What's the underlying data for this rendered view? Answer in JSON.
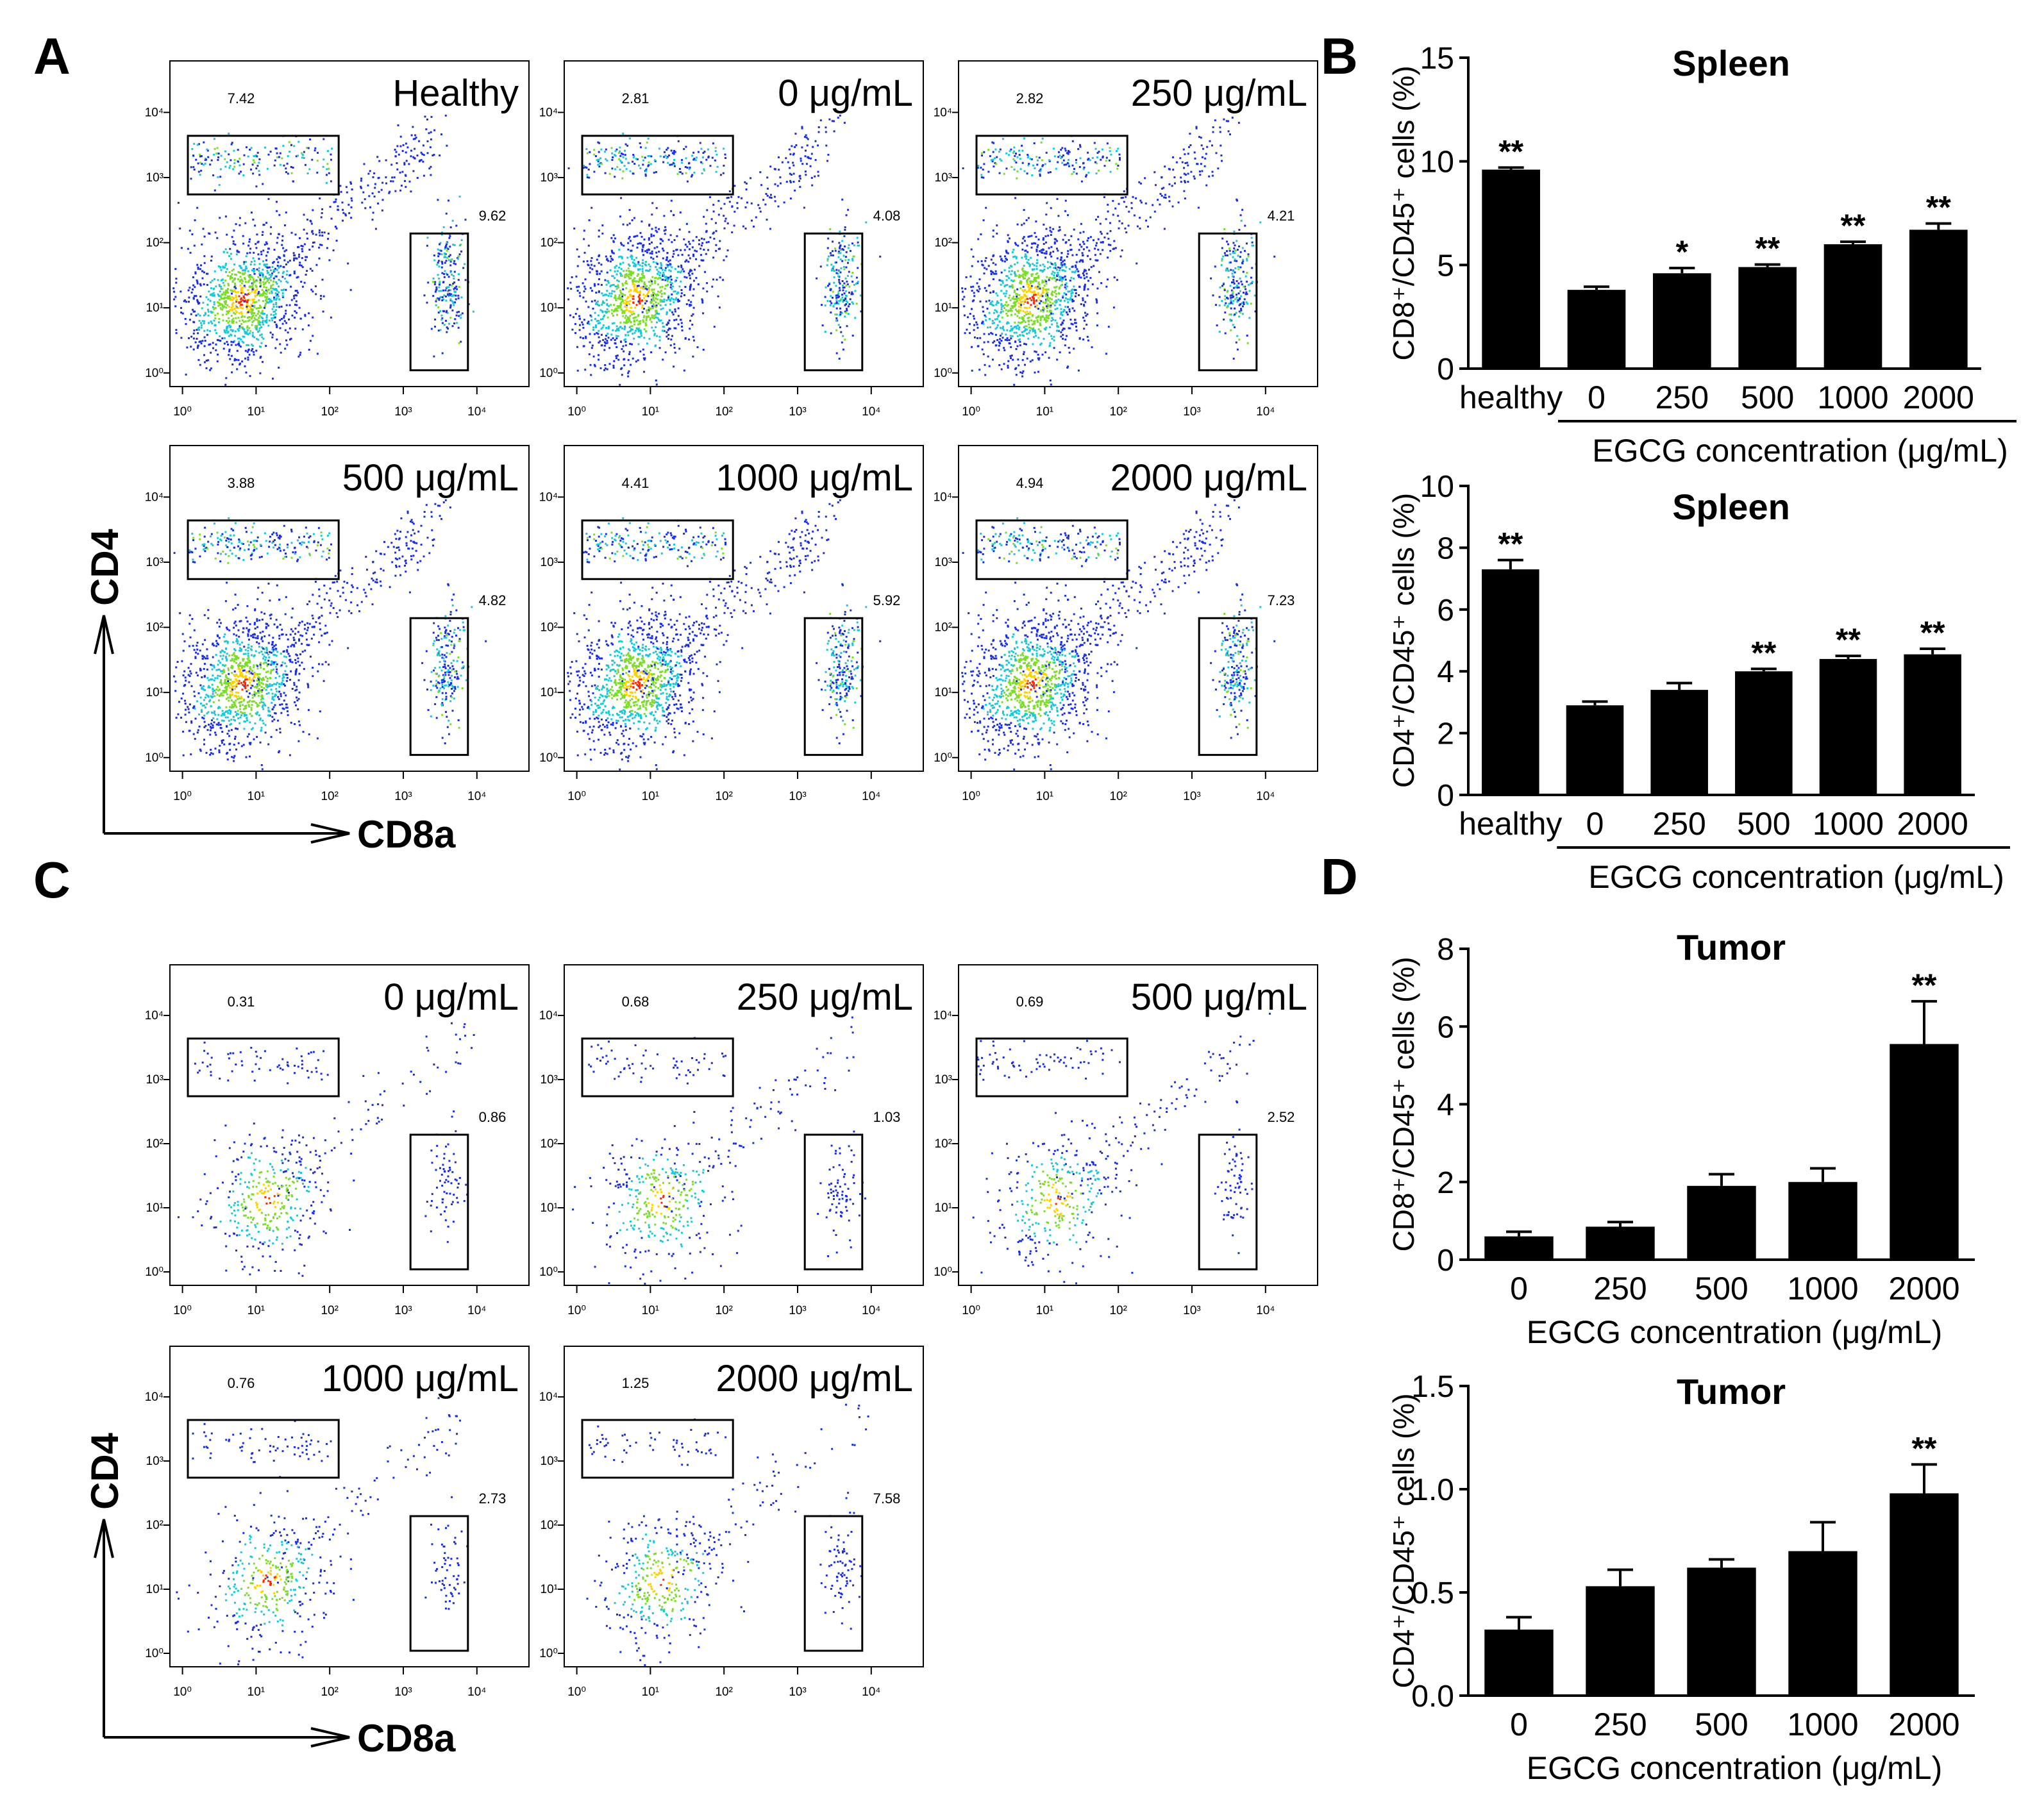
{
  "panel_labels": {
    "A": "A",
    "B": "B",
    "C": "C",
    "D": "D"
  },
  "axis_names": {
    "y": "CD4",
    "x": "CD8a"
  },
  "flow_tick_labels": [
    "10⁰",
    "10¹",
    "10²",
    "10³",
    "10⁴"
  ],
  "panels": {
    "A": {
      "plots": [
        {
          "label": "Healthy",
          "cd4": "7.42",
          "cd8": "9.62"
        },
        {
          "label": "0 μg/mL",
          "cd4": "2.81",
          "cd8": "4.08"
        },
        {
          "label": "250 μg/mL",
          "cd4": "2.82",
          "cd8": "4.21"
        },
        {
          "label": "500 μg/mL",
          "cd4": "3.88",
          "cd8": "4.82"
        },
        {
          "label": "1000 μg/mL",
          "cd4": "4.41",
          "cd8": "5.92"
        },
        {
          "label": "2000 μg/mL",
          "cd4": "4.94",
          "cd8": "7.23"
        }
      ]
    },
    "C": {
      "plots": [
        {
          "label": "0 μg/mL",
          "cd4": "0.31",
          "cd8": "0.86"
        },
        {
          "label": "250 μg/mL",
          "cd4": "0.68",
          "cd8": "1.03"
        },
        {
          "label": "500 μg/mL",
          "cd4": "0.69",
          "cd8": "2.52"
        },
        {
          "label": "1000 μg/mL",
          "cd4": "0.76",
          "cd8": "2.73"
        },
        {
          "label": "2000 μg/mL",
          "cd4": "1.25",
          "cd8": "7.58"
        }
      ]
    }
  },
  "chart_data": [
    {
      "type": "bar",
      "panel": "B",
      "title": "Spleen",
      "ylabel": "CD8⁺/CD45⁺ cells (%)",
      "xlabel": "EGCG concentration (μg/mL)",
      "categories": [
        "healthy",
        "0",
        "250",
        "500",
        "1000",
        "2000"
      ],
      "values": [
        9.6,
        3.8,
        4.6,
        4.9,
        6.0,
        6.7
      ],
      "errors": [
        0.1,
        0.15,
        0.25,
        0.12,
        0.12,
        0.3
      ],
      "significance": [
        "**",
        "",
        "*",
        "**",
        "**",
        "**"
      ],
      "ylim": [
        0,
        15
      ],
      "yticks": [
        "0",
        "5",
        "10",
        "15"
      ]
    },
    {
      "type": "bar",
      "panel": "B",
      "title": "Spleen",
      "ylabel": "CD4⁺/CD45⁺ cells (%)",
      "xlabel": "EGCG concentration (μg/mL)",
      "categories": [
        "healthy",
        "0",
        "250",
        "500",
        "1000",
        "2000"
      ],
      "values": [
        7.3,
        2.9,
        3.4,
        4.0,
        4.4,
        4.55
      ],
      "errors": [
        0.3,
        0.12,
        0.22,
        0.08,
        0.1,
        0.18
      ],
      "significance": [
        "**",
        "",
        "",
        "**",
        "**",
        "**"
      ],
      "ylim": [
        0,
        10
      ],
      "yticks": [
        "0",
        "2",
        "4",
        "6",
        "8",
        "10"
      ]
    },
    {
      "type": "bar",
      "panel": "D",
      "title": "Tumor",
      "ylabel": "CD8⁺/CD45⁺ cells (%)",
      "xlabel": "EGCG concentration (μg/mL)",
      "categories": [
        "0",
        "250",
        "500",
        "1000",
        "2000"
      ],
      "values": [
        0.6,
        0.85,
        1.9,
        2.0,
        5.55
      ],
      "errors": [
        0.12,
        0.12,
        0.3,
        0.35,
        1.1
      ],
      "significance": [
        "",
        "",
        "",
        "",
        "**"
      ],
      "ylim": [
        0,
        8
      ],
      "yticks": [
        "0",
        "2",
        "4",
        "6",
        "8"
      ]
    },
    {
      "type": "bar",
      "panel": "D",
      "title": "Tumor",
      "ylabel": "CD4⁺/CD45⁺ cells (%)",
      "xlabel": "EGCG concentration (μg/mL)",
      "categories": [
        "0",
        "250",
        "500",
        "1000",
        "2000"
      ],
      "values": [
        0.32,
        0.53,
        0.62,
        0.7,
        0.98
      ],
      "errors": [
        0.06,
        0.08,
        0.04,
        0.14,
        0.14
      ],
      "significance": [
        "",
        "",
        "",
        "",
        "**"
      ],
      "ylim": [
        0,
        1.5
      ],
      "yticks": [
        "0.0",
        "0.5",
        "1.0",
        "1.5"
      ]
    }
  ]
}
